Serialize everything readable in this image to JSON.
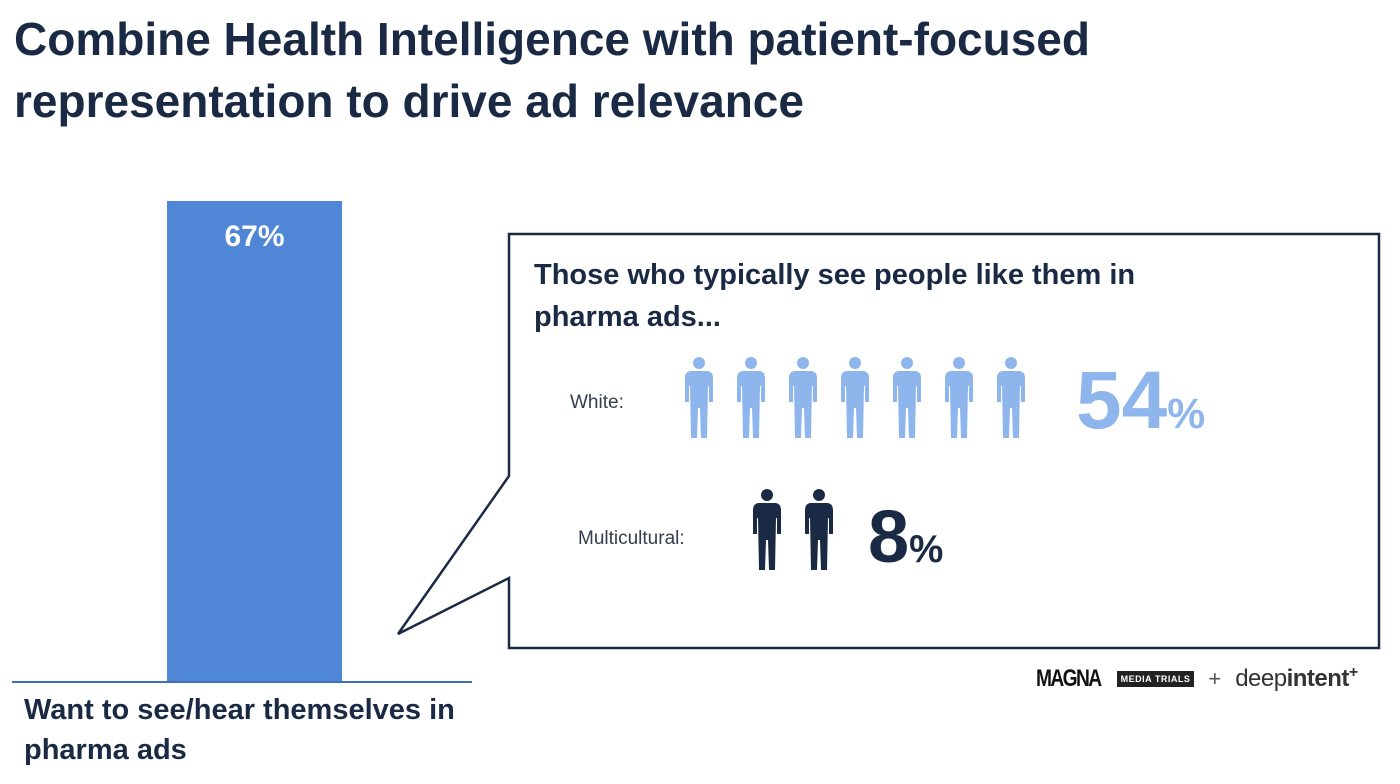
{
  "title": "Combine Health Intelligence with patient-focused representation to drive ad relevance",
  "chart_data": [
    {
      "type": "bar",
      "categories": [
        "Want to see/hear themselves in pharma ads"
      ],
      "values": [
        67
      ],
      "value_labels": [
        "67%"
      ],
      "ylim": [
        0,
        100
      ],
      "bar_color": "#4f86d6"
    },
    {
      "type": "pictogram",
      "title": "Those who typically see people like them in pharma ads...",
      "series": [
        {
          "name": "White:",
          "value": 54,
          "value_text": "54",
          "unit": "%",
          "icon_count": 7,
          "color": "#8eb6ec"
        },
        {
          "name": "Multicultural:",
          "value": 8,
          "value_text": "8",
          "unit": "%",
          "icon_count": 2,
          "color": "#1b2a44"
        }
      ]
    }
  ],
  "logos": {
    "magna": "MAGNA",
    "magna_box": "MEDIA TRIALS",
    "plus": "+",
    "deep": "deep",
    "intent": "intent",
    "intent_mark": "+"
  },
  "icons": {
    "person": "person-silhouette-icon"
  }
}
